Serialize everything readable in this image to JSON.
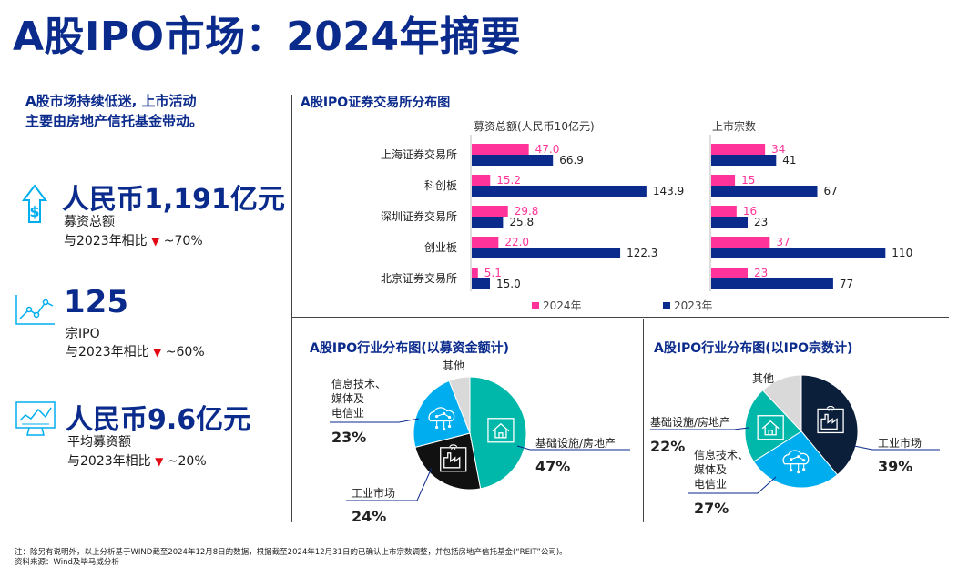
{
  "header": {
    "title": "A股IPO市场：2024年摘要"
  },
  "intro": {
    "line1": "A股市场持续低迷, 上市活动",
    "line2": "主要由房地产信托基金带动。"
  },
  "kpis": [
    {
      "value": "人民币1,191亿元",
      "label": "募资总额",
      "compare": "与2023年相比",
      "arrow": "▼",
      "change": "~70%",
      "icon": "dollar-arrow-icon"
    },
    {
      "value": "125",
      "label": "宗IPO",
      "compare": "与2023年相比",
      "arrow": "▼",
      "change": "~60%",
      "icon": "line-chart-icon"
    },
    {
      "value": "人民币9.6亿元",
      "label": "平均募资额",
      "compare": "与2023年相比",
      "arrow": "▼",
      "change": "~20%",
      "icon": "monitor-chart-icon"
    }
  ],
  "colors": {
    "y2024": "#ff3399",
    "y2023": "#0a2a8c",
    "teal": "#00b8a9",
    "cyan": "#00aeef",
    "dark": "#0b1f3a",
    "gray": "#d9d9d9",
    "black": "#111111"
  },
  "exchange_section": {
    "title": "A股IPO证券交易所分布图",
    "amount_caption": "募资总额(人民币10亿元)",
    "count_caption": "上市宗数"
  },
  "industry_amount_section": {
    "title": "A股IPO行业分布图(以募资金额计)"
  },
  "industry_count_section": {
    "title": "A股IPO行业分布图(以IPO宗数计)"
  },
  "footnote": {
    "line1": "注：除另有说明外，以上分析基于WIND截至2024年12月8日的数据，根据截至2024年12月31日的已确认上市宗数调整，并包括房地产信托基金(“REIT”公司)。",
    "line2": "资料来源：Wind及毕马威分析"
  },
  "chart_data": [
    {
      "type": "bar",
      "orientation": "horizontal",
      "title": "募资总额(人民币10亿元)",
      "categories": [
        "上海证券交易所",
        "科创板",
        "深圳证券交易所",
        "创业板",
        "北京证券交易所"
      ],
      "series": [
        {
          "name": "2024年",
          "values": [
            47.0,
            15.2,
            29.8,
            22.0,
            5.1
          ],
          "labels": [
            "47.0",
            "15.2",
            "29.8",
            "22.0",
            "5.1"
          ]
        },
        {
          "name": "2023年",
          "values": [
            66.9,
            143.9,
            25.8,
            122.3,
            15.0
          ],
          "labels": [
            "66.9",
            "143.9",
            "25.8",
            "122.3",
            "15.0"
          ]
        }
      ],
      "xlim": [
        0,
        150
      ],
      "legend": "bottom"
    },
    {
      "type": "bar",
      "orientation": "horizontal",
      "title": "上市宗数",
      "categories": [
        "上海证券交易所",
        "科创板",
        "深圳证券交易所",
        "创业板",
        "北京证券交易所"
      ],
      "series": [
        {
          "name": "2024年",
          "values": [
            34,
            15,
            16,
            37,
            23
          ],
          "labels": [
            "34",
            "15",
            "16",
            "37",
            "23"
          ]
        },
        {
          "name": "2023年",
          "values": [
            41,
            67,
            23,
            110,
            77
          ],
          "labels": [
            "41",
            "67",
            "23",
            "110",
            "77"
          ]
        }
      ],
      "xlim": [
        0,
        115
      ],
      "legend": "bottom"
    },
    {
      "type": "pie",
      "title": "A股IPO行业分布图(以募资金额计)",
      "slices": [
        {
          "label": "基础设施/房地产",
          "value": 47,
          "display": "47%",
          "color": "#00b8a9",
          "icon": "house-icon"
        },
        {
          "label": "工业市场",
          "value": 24,
          "display": "24%",
          "color": "#111111",
          "icon": "factory-icon"
        },
        {
          "label": "信息技术、媒体及电信业",
          "value": 23,
          "display": "23%",
          "color": "#00aeef",
          "icon": "cloud-network-icon"
        },
        {
          "label": "其他",
          "value": 6,
          "display": "",
          "color": "#d9d9d9"
        }
      ]
    },
    {
      "type": "pie",
      "title": "A股IPO行业分布图(以IPO宗数计)",
      "slices": [
        {
          "label": "工业市场",
          "value": 39,
          "display": "39%",
          "color": "#0b1f3a",
          "icon": "factory-icon"
        },
        {
          "label": "信息技术、媒体及电信业",
          "value": 27,
          "display": "27%",
          "color": "#00aeef",
          "icon": "cloud-network-icon"
        },
        {
          "label": "基础设施/房地产",
          "value": 22,
          "display": "22%",
          "color": "#00b8a9",
          "icon": "house-icon"
        },
        {
          "label": "其他",
          "value": 12,
          "display": "",
          "color": "#d9d9d9"
        }
      ]
    }
  ]
}
